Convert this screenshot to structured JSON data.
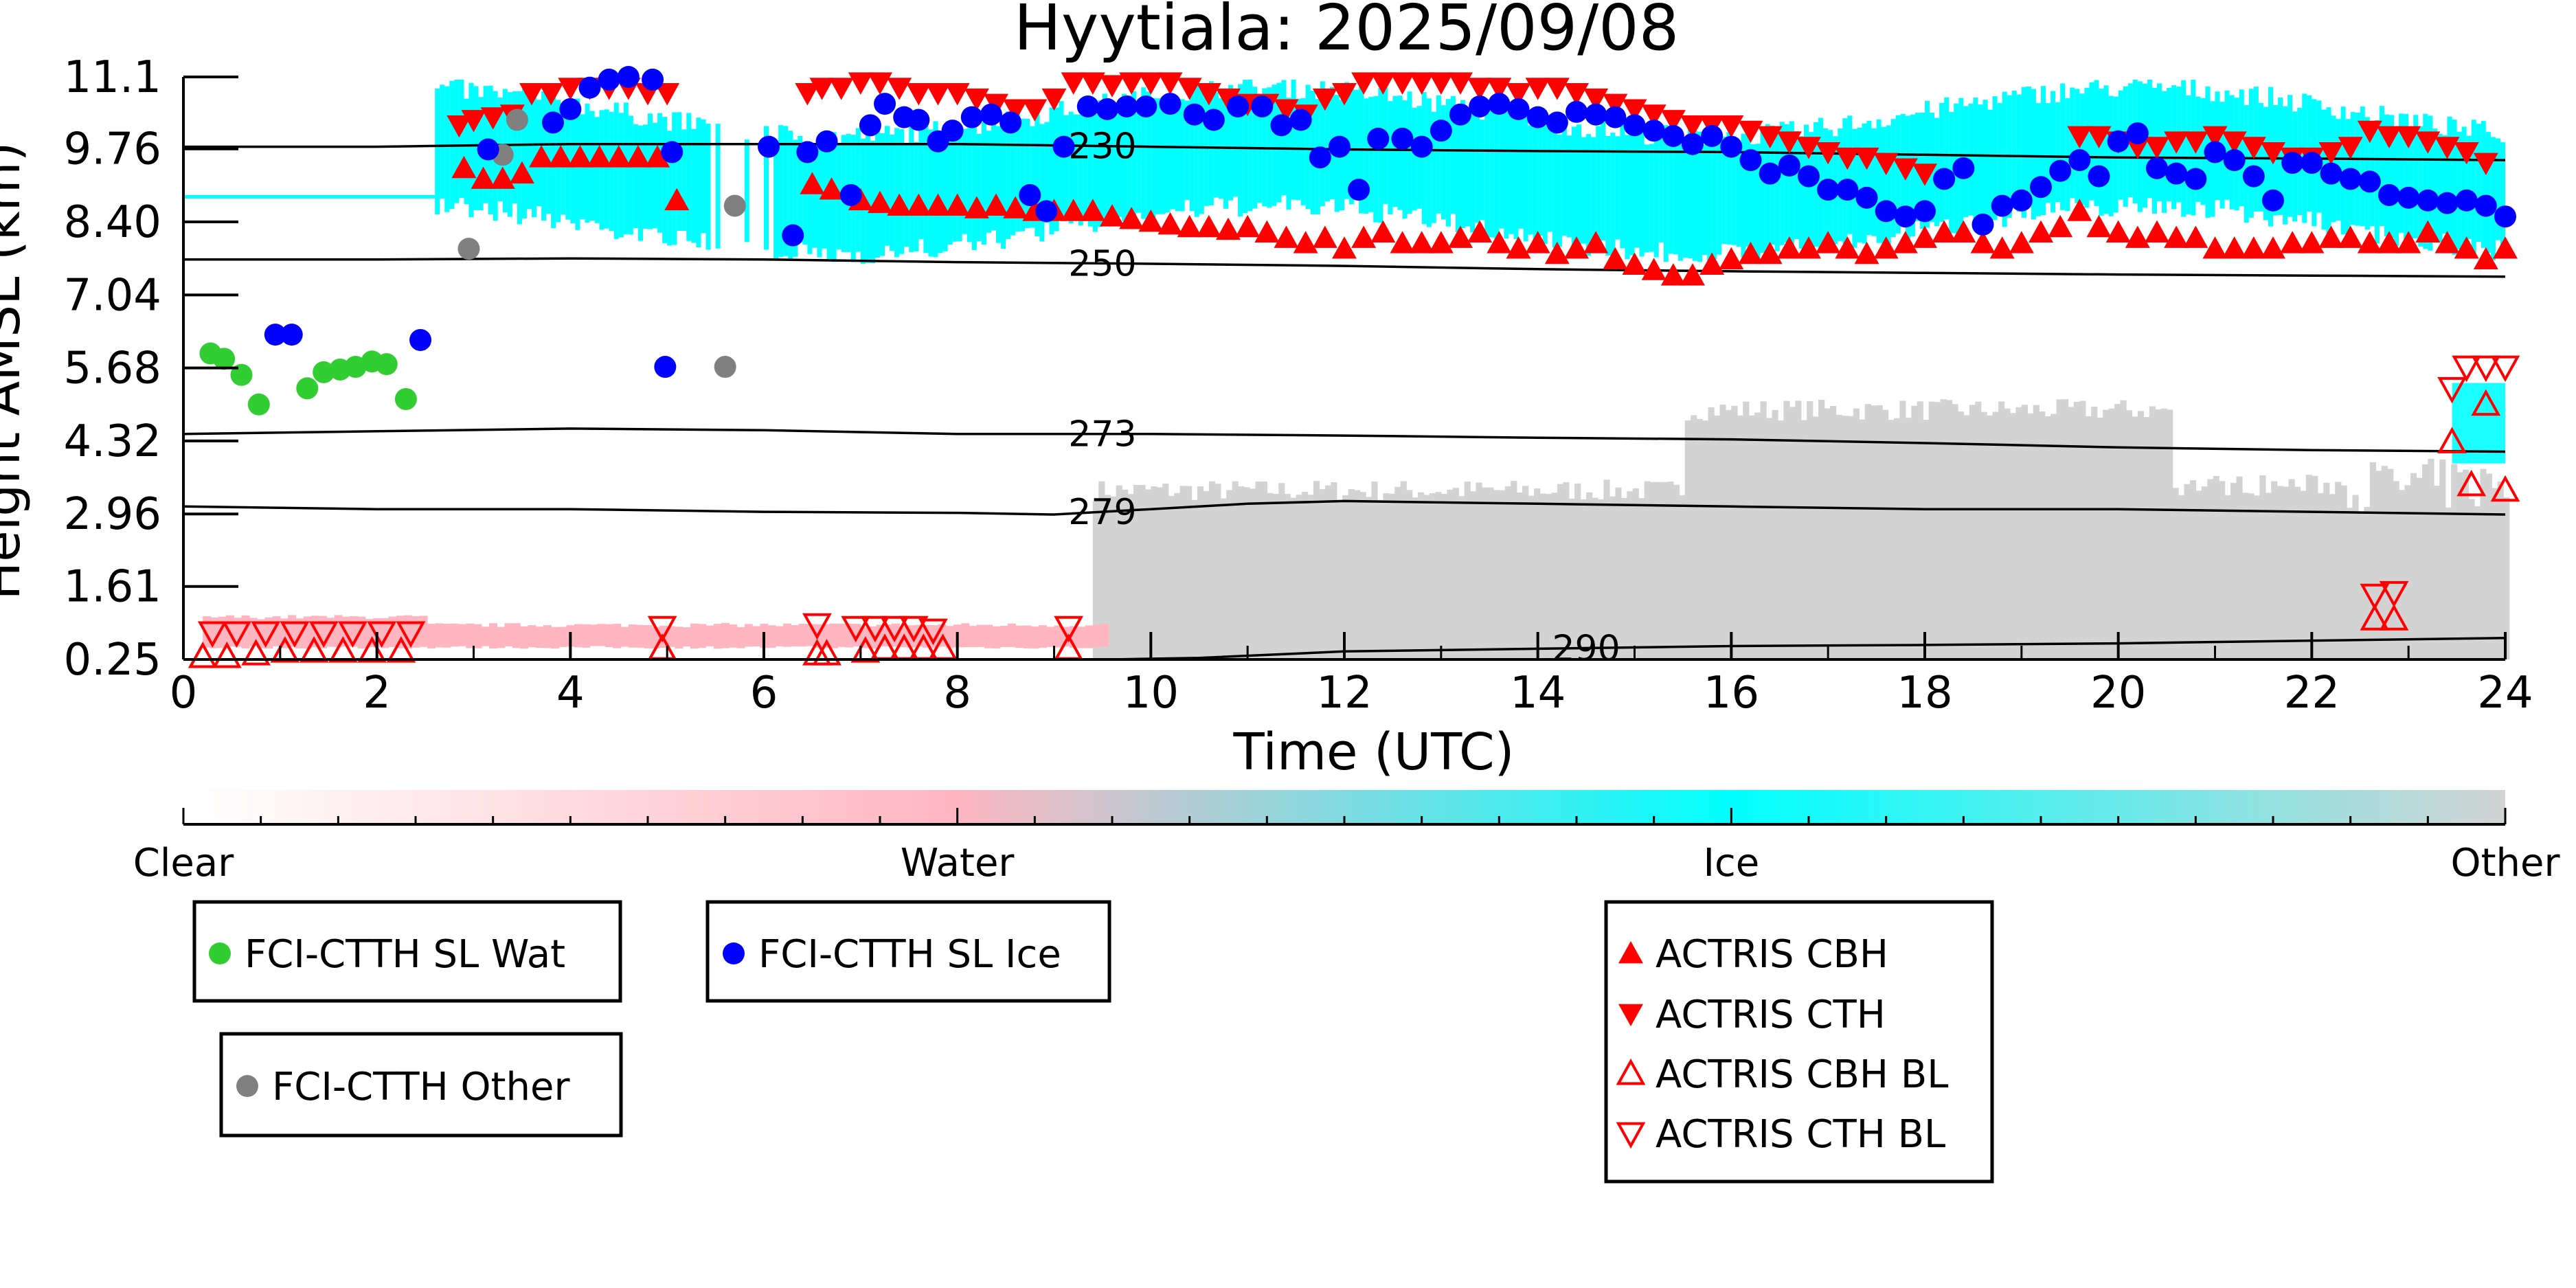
{
  "chart_data": {
    "type": "scatter",
    "title": "Hyytiala: 2025/09/08",
    "xlabel": "Time (UTC)",
    "ylabel": "Height AMSL (km)",
    "xlim": [
      0,
      24
    ],
    "ylim": [
      0.25,
      11.1
    ],
    "xticks": [
      "0",
      "2",
      "4",
      "6",
      "8",
      "10",
      "12",
      "14",
      "16",
      "18",
      "20",
      "22",
      "24"
    ],
    "yticks": [
      "0.25",
      "1.61",
      "2.96",
      "4.32",
      "5.68",
      "7.04",
      "8.40",
      "9.76",
      "11.1"
    ],
    "colorbar": {
      "labels": [
        "Clear",
        "Water",
        "Ice",
        "Other"
      ],
      "colors": [
        "#ffffff",
        "#ffb6c1",
        "#00ffff",
        "#d3d3d3"
      ]
    },
    "background_classes": [
      {
        "class": "Ice",
        "color": "#00ffff",
        "x_start": 2.6,
        "x_end": 24,
        "approx_base_km": 8.2,
        "approx_top_km": 10.7
      },
      {
        "class": "Other",
        "color": "#d3d3d3",
        "x_start": 9.4,
        "x_end": 24,
        "approx_base_km": 0.25,
        "approx_top_km": 4.9
      },
      {
        "class": "Water",
        "color": "#ffb6c1",
        "x_start": 0.2,
        "x_end": 9.5,
        "approx_base_km": 0.45,
        "approx_top_km": 0.85
      }
    ],
    "isotherms": [
      {
        "label": "230",
        "x": [
          0,
          2,
          4,
          6,
          8,
          10,
          12,
          14,
          16,
          18,
          20,
          22,
          24
        ],
        "y": [
          9.8,
          9.8,
          9.85,
          9.85,
          9.85,
          9.8,
          9.75,
          9.72,
          9.7,
          9.65,
          9.6,
          9.58,
          9.55
        ]
      },
      {
        "label": "250",
        "x": [
          0,
          2,
          4,
          6,
          8,
          10,
          12,
          14,
          16,
          18,
          20,
          22,
          24
        ],
        "y": [
          7.7,
          7.7,
          7.72,
          7.7,
          7.65,
          7.62,
          7.58,
          7.52,
          7.48,
          7.45,
          7.42,
          7.4,
          7.38
        ]
      },
      {
        "label": "273",
        "x": [
          0,
          2,
          4,
          6,
          8,
          10,
          12,
          14,
          16,
          18,
          20,
          22,
          24
        ],
        "y": [
          4.45,
          4.5,
          4.55,
          4.52,
          4.45,
          4.45,
          4.42,
          4.38,
          4.35,
          4.28,
          4.2,
          4.15,
          4.12
        ]
      },
      {
        "label": "279",
        "x": [
          0,
          2,
          4,
          6,
          8,
          9,
          10,
          11,
          12,
          14,
          16,
          18,
          20,
          22,
          24
        ],
        "y": [
          3.1,
          3.05,
          3.05,
          3.0,
          2.98,
          2.95,
          3.05,
          3.15,
          3.2,
          3.15,
          3.1,
          3.05,
          3.05,
          3.0,
          2.95
        ]
      },
      {
        "label": "290",
        "x": [
          9.6,
          10.5,
          12,
          14,
          16,
          18,
          20,
          22,
          24
        ],
        "y": [
          0.25,
          0.28,
          0.4,
          0.45,
          0.5,
          0.52,
          0.55,
          0.6,
          0.65
        ]
      }
    ],
    "series": [
      {
        "name": "FCI-CTTH SL Wat",
        "marker": "circle",
        "color": "#32cd32",
        "x": [
          0.28,
          0.42,
          0.6,
          0.78,
          1.28,
          1.45,
          1.62,
          1.78,
          1.95,
          2.1,
          2.3
        ],
        "y": [
          5.95,
          5.85,
          5.55,
          5.0,
          5.3,
          5.6,
          5.65,
          5.7,
          5.8,
          5.75,
          5.1
        ]
      },
      {
        "name": "FCI-CTTH SL Ice",
        "marker": "circle",
        "color": "#0000ff",
        "x": [
          0.95,
          1.12,
          2.45,
          3.15,
          3.82,
          4.0,
          4.2,
          4.4,
          4.6,
          4.85,
          5.05,
          4.98,
          6.05,
          6.3,
          6.45,
          6.65,
          6.9,
          7.1,
          7.25,
          7.45,
          7.6,
          7.8,
          7.95,
          8.15,
          8.35,
          8.55,
          8.75,
          8.92,
          9.1,
          9.35,
          9.55,
          9.75,
          9.95,
          10.2,
          10.45,
          10.65,
          10.9,
          11.15,
          11.35,
          11.55,
          11.75,
          11.95,
          12.15,
          12.35,
          12.6,
          12.8,
          13.0,
          13.2,
          13.4,
          13.6,
          13.8,
          14.0,
          14.2,
          14.4,
          14.6,
          14.8,
          15.0,
          15.2,
          15.4,
          15.6,
          15.8,
          16.0,
          16.2,
          16.4,
          16.6,
          16.8,
          17.0,
          17.2,
          17.4,
          17.6,
          17.8,
          18.0,
          18.2,
          18.4,
          18.6,
          18.8,
          19.0,
          19.2,
          19.4,
          19.6,
          19.8,
          20.0,
          20.2,
          20.4,
          20.6,
          20.8,
          21.0,
          21.2,
          21.4,
          21.6,
          21.8,
          22.0,
          22.2,
          22.4,
          22.6,
          22.8,
          23.0,
          23.2,
          23.4,
          23.6,
          23.8,
          24.0
        ],
        "y": [
          6.3,
          6.3,
          6.2,
          9.75,
          10.25,
          10.5,
          10.9,
          11.05,
          11.1,
          11.05,
          9.7,
          5.7,
          9.8,
          8.15,
          9.7,
          9.9,
          8.9,
          10.2,
          10.6,
          10.35,
          10.3,
          9.9,
          10.1,
          10.35,
          10.4,
          10.25,
          8.9,
          8.6,
          9.8,
          10.55,
          10.5,
          10.55,
          10.55,
          10.6,
          10.4,
          10.3,
          10.55,
          10.55,
          10.2,
          10.3,
          9.6,
          9.8,
          9.0,
          9.95,
          9.95,
          9.8,
          10.1,
          10.4,
          10.55,
          10.6,
          10.5,
          10.35,
          10.25,
          10.45,
          10.4,
          10.35,
          10.2,
          10.1,
          10.0,
          9.85,
          10.0,
          9.8,
          9.55,
          9.3,
          9.45,
          9.25,
          9.0,
          9.0,
          8.85,
          8.6,
          8.5,
          8.6,
          9.2,
          9.4,
          8.35,
          8.7,
          8.8,
          9.05,
          9.35,
          9.55,
          9.25,
          9.9,
          10.05,
          9.4,
          9.3,
          9.2,
          9.7,
          9.55,
          9.25,
          8.8,
          9.5,
          9.5,
          9.3,
          9.2,
          9.15,
          8.9,
          8.85,
          8.8,
          8.75,
          8.8,
          8.7,
          8.5
        ]
      },
      {
        "name": "FCI-CTTH Other",
        "marker": "circle",
        "color": "#808080",
        "x": [
          2.95,
          3.3,
          3.45,
          5.6,
          5.7
        ],
        "y": [
          7.9,
          9.65,
          10.3,
          5.7,
          8.7
        ]
      },
      {
        "name": "ACTRIS CBH",
        "marker": "triangle-up",
        "color": "#ff0000",
        "filled": true,
        "x": [
          2.9,
          3.1,
          3.3,
          3.5,
          3.7,
          3.9,
          4.1,
          4.3,
          4.5,
          4.7,
          4.9,
          5.1,
          6.5,
          6.7,
          7.0,
          7.2,
          7.4,
          7.6,
          7.8,
          8.0,
          8.2,
          8.4,
          8.6,
          8.8,
          9.0,
          9.2,
          9.4,
          9.6,
          9.8,
          10.0,
          10.2,
          10.4,
          10.6,
          10.8,
          11.0,
          11.2,
          11.4,
          11.6,
          11.8,
          12.0,
          12.2,
          12.4,
          12.6,
          12.8,
          13.0,
          13.2,
          13.4,
          13.6,
          13.8,
          14.0,
          14.2,
          14.4,
          14.6,
          14.8,
          15.0,
          15.2,
          15.4,
          15.6,
          15.8,
          16.0,
          16.2,
          16.4,
          16.6,
          16.8,
          17.0,
          17.2,
          17.4,
          17.6,
          17.8,
          18.0,
          18.2,
          18.4,
          18.6,
          18.8,
          19.0,
          19.2,
          19.4,
          19.6,
          19.8,
          20.0,
          20.2,
          20.4,
          20.6,
          20.8,
          21.0,
          21.2,
          21.4,
          21.6,
          21.8,
          22.0,
          22.2,
          22.4,
          22.6,
          22.8,
          23.0,
          23.2,
          23.4,
          23.6,
          23.8,
          24.0
        ],
        "y": [
          9.4,
          9.2,
          9.2,
          9.3,
          9.6,
          9.6,
          9.6,
          9.6,
          9.6,
          9.6,
          9.6,
          8.8,
          9.1,
          9.0,
          8.8,
          8.75,
          8.7,
          8.7,
          8.7,
          8.7,
          8.65,
          8.7,
          8.65,
          8.6,
          8.6,
          8.6,
          8.6,
          8.5,
          8.45,
          8.4,
          8.35,
          8.3,
          8.3,
          8.25,
          8.3,
          8.2,
          8.1,
          8.0,
          8.1,
          7.9,
          8.1,
          8.2,
          8.0,
          8.0,
          8.0,
          8.1,
          8.2,
          8.0,
          7.9,
          8.0,
          7.8,
          7.9,
          8.0,
          7.7,
          7.6,
          7.5,
          7.4,
          7.4,
          7.6,
          7.7,
          7.8,
          7.8,
          7.9,
          7.9,
          8.0,
          7.9,
          7.8,
          7.9,
          8.0,
          8.1,
          8.2,
          8.2,
          8.0,
          7.9,
          8.0,
          8.2,
          8.3,
          8.6,
          8.3,
          8.2,
          8.1,
          8.2,
          8.1,
          8.1,
          7.9,
          7.9,
          7.9,
          7.9,
          8.0,
          8.0,
          8.1,
          8.1,
          8.0,
          8.0,
          8.0,
          8.2,
          8.0,
          7.9,
          7.7,
          7.9
        ]
      },
      {
        "name": "ACTRIS CTH",
        "marker": "triangle-down",
        "color": "#ff0000",
        "filled": true,
        "x": [
          2.85,
          3.0,
          3.2,
          3.4,
          3.6,
          3.8,
          4.0,
          4.2,
          4.4,
          4.6,
          4.8,
          5.0,
          6.45,
          6.6,
          6.8,
          7.0,
          7.2,
          7.4,
          7.6,
          7.8,
          8.0,
          8.2,
          8.4,
          8.6,
          8.8,
          9.0,
          9.2,
          9.4,
          9.6,
          9.8,
          10.0,
          10.2,
          10.4,
          10.6,
          10.8,
          11.0,
          11.2,
          11.4,
          11.6,
          11.8,
          12.0,
          12.2,
          12.4,
          12.6,
          12.8,
          13.0,
          13.2,
          13.4,
          13.6,
          13.8,
          14.0,
          14.2,
          14.4,
          14.6,
          14.8,
          15.0,
          15.2,
          15.4,
          15.6,
          15.8,
          16.0,
          16.2,
          16.4,
          16.6,
          16.8,
          17.0,
          17.2,
          17.4,
          17.6,
          17.8,
          18.0,
          19.6,
          19.8,
          20.0,
          20.2,
          20.4,
          20.6,
          20.8,
          21.0,
          21.2,
          21.4,
          21.6,
          21.8,
          22.0,
          22.2,
          22.4,
          22.6,
          22.8,
          23.0,
          23.2,
          23.4,
          23.6,
          23.8
        ],
        "y": [
          10.2,
          10.3,
          10.35,
          10.4,
          10.8,
          10.8,
          10.9,
          10.9,
          10.9,
          10.9,
          10.8,
          10.8,
          10.8,
          10.9,
          10.9,
          11.0,
          11.0,
          10.9,
          10.8,
          10.8,
          10.8,
          10.7,
          10.6,
          10.5,
          10.5,
          10.7,
          11.0,
          11.0,
          10.95,
          11.0,
          11.0,
          11.0,
          10.9,
          10.8,
          10.7,
          10.6,
          10.6,
          10.5,
          10.4,
          10.7,
          10.8,
          11.0,
          11.0,
          11.0,
          11.0,
          11.0,
          11.0,
          10.9,
          10.9,
          10.8,
          10.9,
          10.9,
          10.8,
          10.7,
          10.6,
          10.5,
          10.4,
          10.3,
          10.2,
          10.2,
          10.2,
          10.1,
          10.0,
          9.9,
          9.8,
          9.7,
          9.6,
          9.6,
          9.5,
          9.4,
          9.3,
          10.0,
          10.0,
          9.9,
          9.8,
          9.8,
          9.9,
          9.9,
          10.0,
          9.9,
          9.8,
          9.7,
          9.6,
          9.6,
          9.7,
          9.8,
          10.1,
          10.0,
          10.0,
          9.9,
          9.8,
          9.7,
          9.5
        ]
      },
      {
        "name": "ACTRIS CBH BL",
        "marker": "triangle-up",
        "color": "#ff0000",
        "filled": false,
        "x": [
          0.2,
          0.45,
          0.75,
          1.05,
          1.35,
          1.65,
          1.95,
          2.25,
          4.95,
          6.55,
          6.65,
          7.05,
          7.25,
          7.45,
          7.65,
          7.85,
          9.15,
          22.65,
          22.85,
          23.45,
          23.65,
          23.8,
          24.0
        ],
        "y": [
          0.3,
          0.3,
          0.35,
          0.4,
          0.4,
          0.4,
          0.4,
          0.4,
          0.45,
          0.35,
          0.35,
          0.4,
          0.45,
          0.45,
          0.45,
          0.45,
          0.45,
          1.0,
          1.0,
          4.3,
          3.5,
          5.0,
          3.4
        ]
      },
      {
        "name": "ACTRIS CTH BL",
        "marker": "triangle-down",
        "color": "#ff0000",
        "filled": false,
        "x": [
          0.3,
          0.55,
          0.85,
          1.15,
          1.45,
          1.75,
          2.05,
          2.35,
          4.95,
          6.55,
          6.95,
          7.15,
          7.35,
          7.55,
          7.75,
          9.15,
          22.65,
          22.85,
          23.45,
          23.6,
          23.8,
          24.0
        ],
        "y": [
          0.75,
          0.75,
          0.75,
          0.75,
          0.75,
          0.75,
          0.75,
          0.75,
          0.85,
          0.9,
          0.85,
          0.85,
          0.85,
          0.85,
          0.8,
          0.85,
          1.45,
          1.5,
          5.3,
          5.7,
          5.7,
          5.7
        ]
      }
    ]
  }
}
